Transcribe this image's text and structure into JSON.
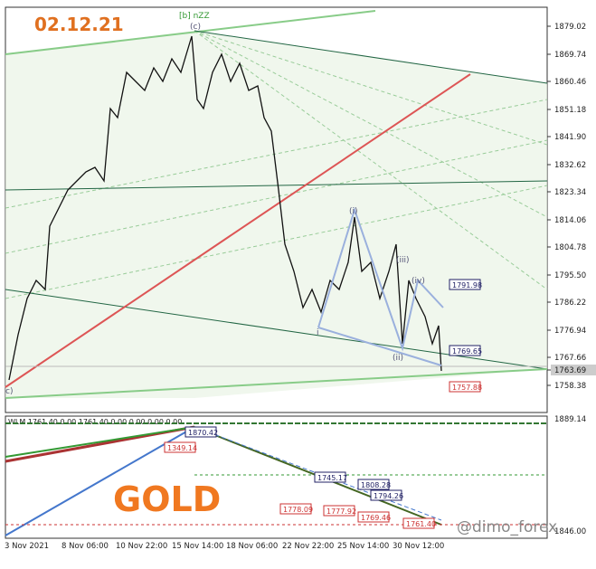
{
  "header": {
    "date": "02.12.21",
    "indicator": "WLM 1761.40 0.00 1761.40 0.00 0.00 0.00 0.00"
  },
  "price_axis": [
    "1879.02",
    "1869.74",
    "1860.46",
    "1851.18",
    "1841.90",
    "1832.62",
    "1823.34",
    "1814.06",
    "1804.78",
    "1795.50",
    "1786.22",
    "1776.94",
    "1767.66",
    "1763.69",
    "1758.38"
  ],
  "indicator_axis": [
    "1889.14",
    "1846.00"
  ],
  "time_axis": [
    "3 Nov 2021",
    "8 Nov 06:00",
    "10 Nov 22:00",
    "15 Nov 14:00",
    "18 Nov 06:00",
    "22 Nov 22:00",
    "25 Nov 14:00",
    "30 Nov 12:00"
  ],
  "wave_labels": [
    "[b] nZZ",
    "(c)",
    "(i)",
    "(ii)",
    "(iii)",
    "(iv)",
    "c)",
    "i"
  ],
  "price_boxes": [
    "1791.98",
    "1769.65",
    "1757.88"
  ],
  "indicator_boxes": [
    "1870.42",
    "1349.14",
    "1745.17",
    "1808.28",
    "1794.26",
    "1778.09",
    "1777.92",
    "1769.46",
    "1761.40"
  ],
  "symbol": "GOLD",
  "watermark": "@dimo_forex"
}
